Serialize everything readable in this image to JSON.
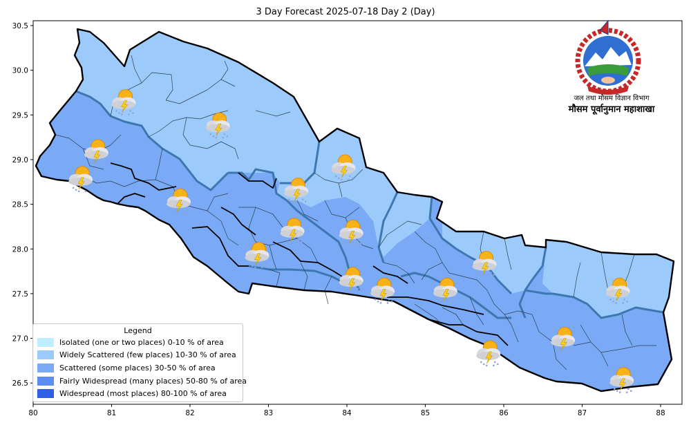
{
  "title": "3 Day Forecast 2025-07-18 Day 2 (Day)",
  "x_axis": {
    "ticks": [
      "80",
      "81",
      "82",
      "83",
      "84",
      "85",
      "86",
      "87",
      "88"
    ]
  },
  "y_axis": {
    "ticks": [
      "30.5",
      "30.0",
      "29.5",
      "29.0",
      "28.5",
      "28.0",
      "27.5",
      "27.0",
      "26.5"
    ]
  },
  "legend": {
    "title": "Legend",
    "items": [
      {
        "label": "Isolated (one or two places)  0-10 % of area",
        "color": "#bfeeff"
      },
      {
        "label": "Widely Scattered (few places) 10-30 % of area",
        "color": "#9ccbfb"
      },
      {
        "label": "Scattered (some places) 30-50  % of area",
        "color": "#7aaaf6"
      },
      {
        "label": "Fairly Widespread (many places) 50-80 % of area",
        "color": "#5b8df2"
      },
      {
        "label": "Widespread (most places) 80-100 % of area",
        "color": "#2f5fe6"
      }
    ]
  },
  "emblem": {
    "line1": "जल तथा मौसम विज्ञान विभाग",
    "line2": "मौसम पूर्वानुमान महाशाखा"
  },
  "colors": {
    "widely_scattered": "#9ccbfb",
    "scattered": "#7aaaf6",
    "border": "#000000",
    "district_line": "#2c3e50",
    "province_line": "#3d77b0"
  },
  "forecast_icons": [
    {
      "name": "thunder-rain",
      "lon": 81.15,
      "lat": 29.66
    },
    {
      "name": "thunder-rain",
      "lon": 82.35,
      "lat": 29.4
    },
    {
      "name": "thunder-rain",
      "lon": 80.8,
      "lat": 29.1
    },
    {
      "name": "thunder-rain",
      "lon": 80.6,
      "lat": 28.8
    },
    {
      "name": "thunder-rain",
      "lon": 81.85,
      "lat": 28.55
    },
    {
      "name": "thunder-rain",
      "lon": 83.35,
      "lat": 28.67
    },
    {
      "name": "thunder-rain",
      "lon": 83.95,
      "lat": 28.93
    },
    {
      "name": "thunder-rain",
      "lon": 83.3,
      "lat": 28.22
    },
    {
      "name": "thunder-rain",
      "lon": 84.05,
      "lat": 28.2
    },
    {
      "name": "thunder-rain",
      "lon": 82.85,
      "lat": 27.95
    },
    {
      "name": "thunder-rain",
      "lon": 84.05,
      "lat": 27.67
    },
    {
      "name": "thunder-rain",
      "lon": 84.45,
      "lat": 27.55
    },
    {
      "name": "thunder-rain",
      "lon": 85.25,
      "lat": 27.55
    },
    {
      "name": "thunder-rain",
      "lon": 85.75,
      "lat": 27.85
    },
    {
      "name": "thunder-rain",
      "lon": 87.45,
      "lat": 27.55
    },
    {
      "name": "thunder-rain",
      "lon": 86.75,
      "lat": 27.0
    },
    {
      "name": "thunder-rain",
      "lon": 85.8,
      "lat": 26.85
    },
    {
      "name": "thunder-rain",
      "lon": 87.5,
      "lat": 26.55
    }
  ]
}
